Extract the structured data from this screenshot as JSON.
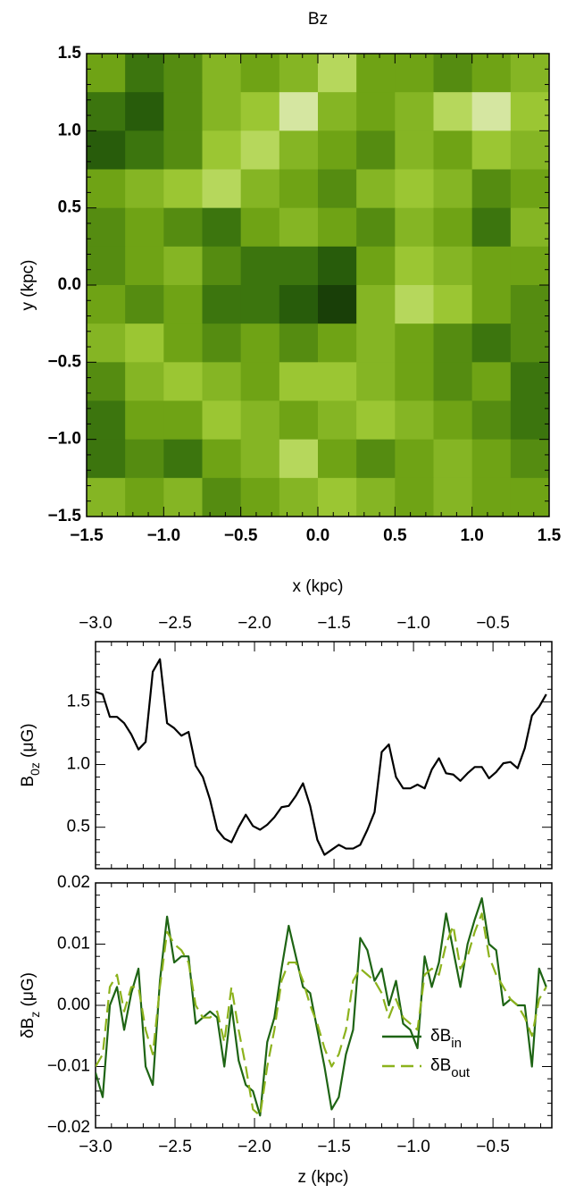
{
  "chart_data": [
    {
      "type": "heatmap",
      "title": "Bz",
      "x_label": "x (kpc)",
      "y_label": "y (kpc)",
      "xlim": [
        -1.5,
        1.5
      ],
      "ylim": [
        -1.5,
        1.5
      ],
      "xticks": [
        {
          "value": -1.5,
          "label": "−1.5"
        },
        {
          "value": -1.0,
          "label": "−1.0"
        },
        {
          "value": -0.5,
          "label": "−0.5"
        },
        {
          "value": 0,
          "label": "0.0"
        },
        0.5,
        {
          "value": 1.0,
          "label": "1.0"
        },
        1.5
      ],
      "yticks": [
        {
          "value": -1.5,
          "label": "−1.5"
        },
        {
          "value": -1.0,
          "label": "−1.0"
        },
        {
          "value": -0.5,
          "label": "−0.5"
        },
        {
          "value": 0,
          "label": "0.0"
        },
        0.5,
        {
          "value": 1.0,
          "label": "1.0"
        },
        1.5
      ],
      "colormap": [
        "#0b2205",
        "#2f6a0c",
        "#6fa315",
        "#a6cf3a",
        "#f4f6e6"
      ],
      "z": [
        [
          0.5,
          0.3,
          0.4,
          0.6,
          0.5,
          0.6,
          0.8,
          0.5,
          0.5,
          0.4,
          0.5,
          0.6
        ],
        [
          0.3,
          0.2,
          0.4,
          0.6,
          0.7,
          0.9,
          0.6,
          0.5,
          0.6,
          0.8,
          0.9,
          0.7
        ],
        [
          0.2,
          0.3,
          0.4,
          0.7,
          0.8,
          0.6,
          0.5,
          0.4,
          0.6,
          0.5,
          0.7,
          0.6
        ],
        [
          0.5,
          0.6,
          0.7,
          0.8,
          0.6,
          0.5,
          0.4,
          0.6,
          0.7,
          0.6,
          0.4,
          0.5
        ],
        [
          0.4,
          0.5,
          0.4,
          0.3,
          0.5,
          0.6,
          0.5,
          0.4,
          0.6,
          0.5,
          0.3,
          0.6
        ],
        [
          0.4,
          0.5,
          0.6,
          0.4,
          0.3,
          0.3,
          0.2,
          0.5,
          0.7,
          0.6,
          0.5,
          0.5
        ],
        [
          0.5,
          0.4,
          0.5,
          0.3,
          0.3,
          0.2,
          0.1,
          0.6,
          0.8,
          0.7,
          0.5,
          0.4
        ],
        [
          0.6,
          0.7,
          0.5,
          0.4,
          0.5,
          0.4,
          0.5,
          0.6,
          0.5,
          0.4,
          0.3,
          0.4
        ],
        [
          0.4,
          0.6,
          0.7,
          0.6,
          0.5,
          0.7,
          0.7,
          0.6,
          0.5,
          0.4,
          0.5,
          0.3
        ],
        [
          0.3,
          0.5,
          0.5,
          0.7,
          0.6,
          0.5,
          0.6,
          0.7,
          0.6,
          0.5,
          0.4,
          0.3
        ],
        [
          0.3,
          0.4,
          0.3,
          0.5,
          0.6,
          0.8,
          0.5,
          0.4,
          0.5,
          0.6,
          0.5,
          0.4
        ],
        [
          0.6,
          0.5,
          0.6,
          0.4,
          0.5,
          0.6,
          0.7,
          0.6,
          0.5,
          0.6,
          0.5,
          0.5
        ]
      ]
    },
    {
      "type": "line",
      "y_label": [
        "B",
        "0z",
        " (μG)"
      ],
      "xlim": [
        -3.0,
        -0.13
      ],
      "ylim": [
        0.17,
        1.98
      ],
      "xticks": [
        {
          "value": -3.0,
          "label": "−3.0"
        },
        {
          "value": -2.5,
          "label": "−2.5"
        },
        {
          "value": -2.0,
          "label": "−2.0"
        },
        {
          "value": -1.5,
          "label": "−1.5"
        },
        {
          "value": -1.0,
          "label": "−1.0"
        },
        {
          "value": -0.5,
          "label": "−0.5"
        }
      ],
      "yticks": [
        0.5,
        {
          "value": 1.0,
          "label": "1.0"
        },
        1.5
      ],
      "x": [
        -3.0,
        -2.955,
        -2.91,
        -2.865,
        -2.82,
        -2.775,
        -2.73,
        -2.685,
        -2.64,
        -2.595,
        -2.55,
        -2.505,
        -2.46,
        -2.415,
        -2.37,
        -2.325,
        -2.28,
        -2.235,
        -2.19,
        -2.145,
        -2.1,
        -2.055,
        -2.01,
        -1.965,
        -1.92,
        -1.875,
        -1.83,
        -1.785,
        -1.74,
        -1.695,
        -1.65,
        -1.605,
        -1.56,
        -1.515,
        -1.47,
        -1.425,
        -1.38,
        -1.335,
        -1.29,
        -1.245,
        -1.2,
        -1.155,
        -1.11,
        -1.065,
        -1.02,
        -0.975,
        -0.93,
        -0.885,
        -0.84,
        -0.795,
        -0.75,
        -0.705,
        -0.66,
        -0.615,
        -0.57,
        -0.525,
        -0.48,
        -0.435,
        -0.39,
        -0.345,
        -0.3,
        -0.255,
        -0.21,
        -0.165
      ],
      "series": [
        {
          "color": "#000000",
          "values": [
            1.58,
            1.56,
            1.38,
            1.38,
            1.33,
            1.24,
            1.12,
            1.18,
            1.74,
            1.84,
            1.33,
            1.29,
            1.23,
            1.26,
            0.99,
            0.9,
            0.72,
            0.48,
            0.41,
            0.38,
            0.5,
            0.6,
            0.51,
            0.48,
            0.52,
            0.58,
            0.66,
            0.67,
            0.75,
            0.85,
            0.67,
            0.4,
            0.28,
            0.32,
            0.36,
            0.33,
            0.33,
            0.36,
            0.48,
            0.62,
            1.1,
            1.16,
            0.9,
            0.81,
            0.81,
            0.84,
            0.81,
            0.96,
            1.05,
            0.93,
            0.92,
            0.87,
            0.93,
            0.98,
            0.98,
            0.89,
            0.94,
            1.01,
            1.02,
            0.97,
            1.13,
            1.39,
            1.46,
            1.56
          ]
        }
      ]
    },
    {
      "type": "line",
      "x_label": "z (kpc)",
      "y_label": [
        "δB",
        "z",
        " (μG)"
      ],
      "legend": "lower right",
      "xlim": [
        -3.0,
        -0.13
      ],
      "ylim": [
        -0.02,
        0.02
      ],
      "xticks": [
        {
          "value": -3.0,
          "label": "−3.0"
        },
        {
          "value": -2.5,
          "label": "−2.5"
        },
        {
          "value": -2.0,
          "label": "−2.0"
        },
        {
          "value": -1.5,
          "label": "−1.5"
        },
        {
          "value": -1.0,
          "label": "−1.0"
        },
        {
          "value": -0.5,
          "label": "−0.5"
        }
      ],
      "yticks": [
        {
          "value": -0.02,
          "label": "−0.02"
        },
        {
          "value": -0.01,
          "label": "−0.01"
        },
        {
          "value": 0,
          "label": "0.00"
        },
        0.01,
        0.02
      ],
      "x": [
        -3.0,
        -2.955,
        -2.91,
        -2.865,
        -2.82,
        -2.775,
        -2.73,
        -2.685,
        -2.64,
        -2.595,
        -2.55,
        -2.505,
        -2.46,
        -2.415,
        -2.37,
        -2.325,
        -2.28,
        -2.235,
        -2.19,
        -2.145,
        -2.1,
        -2.055,
        -2.01,
        -1.965,
        -1.92,
        -1.875,
        -1.83,
        -1.785,
        -1.74,
        -1.695,
        -1.65,
        -1.605,
        -1.56,
        -1.515,
        -1.47,
        -1.425,
        -1.38,
        -1.335,
        -1.29,
        -1.245,
        -1.2,
        -1.155,
        -1.11,
        -1.065,
        -1.02,
        -0.975,
        -0.93,
        -0.885,
        -0.84,
        -0.795,
        -0.75,
        -0.705,
        -0.66,
        -0.615,
        -0.57,
        -0.525,
        -0.48,
        -0.435,
        -0.39,
        -0.345,
        -0.3,
        -0.255,
        -0.21,
        -0.165
      ],
      "series": [
        {
          "name": [
            "δB",
            "in"
          ],
          "color": "#1e6414",
          "dashed": false,
          "values": [
            -0.011,
            -0.015,
            0.0,
            0.003,
            -0.004,
            0.002,
            0.006,
            -0.01,
            -0.013,
            0.004,
            0.0145,
            0.007,
            0.008,
            0.008,
            -0.003,
            -0.002,
            -0.001,
            -0.002,
            -0.01,
            0.0,
            -0.009,
            -0.013,
            -0.014,
            -0.018,
            -0.006,
            -0.002,
            0.006,
            0.013,
            0.008,
            0.003,
            0.002,
            -0.004,
            -0.01,
            -0.017,
            -0.015,
            -0.008,
            -0.004,
            0.011,
            0.009,
            0.004,
            0.006,
            0.0,
            0.004,
            -0.003,
            -0.004,
            -0.007,
            0.008,
            0.003,
            0.007,
            0.015,
            0.009,
            0.003,
            0.01,
            0.014,
            0.0175,
            0.01,
            0.009,
            0.0,
            0.001,
            0.0,
            0.0,
            -0.01,
            0.006,
            0.003
          ]
        },
        {
          "name": [
            "δB",
            "out"
          ],
          "color": "#8cb21c",
          "dashed": true,
          "values": [
            -0.01,
            -0.008,
            0.003,
            0.005,
            -0.001,
            0.003,
            0.003,
            -0.004,
            -0.008,
            0.003,
            0.012,
            0.01,
            0.009,
            0.007,
            0.0,
            -0.002,
            -0.002,
            -0.001,
            -0.006,
            0.003,
            -0.004,
            -0.01,
            -0.017,
            -0.018,
            -0.01,
            -0.004,
            0.004,
            0.007,
            0.007,
            0.004,
            0.0,
            -0.003,
            -0.007,
            -0.01,
            -0.008,
            -0.004,
            0.004,
            0.006,
            0.005,
            0.004,
            0.002,
            -0.002,
            0.001,
            -0.002,
            -0.003,
            -0.004,
            0.005,
            0.006,
            0.005,
            0.01,
            0.013,
            0.006,
            0.008,
            0.012,
            0.015,
            0.008,
            0.005,
            0.003,
            0.001,
            0.0,
            -0.002,
            -0.005,
            0.001,
            0.003
          ]
        }
      ]
    }
  ]
}
